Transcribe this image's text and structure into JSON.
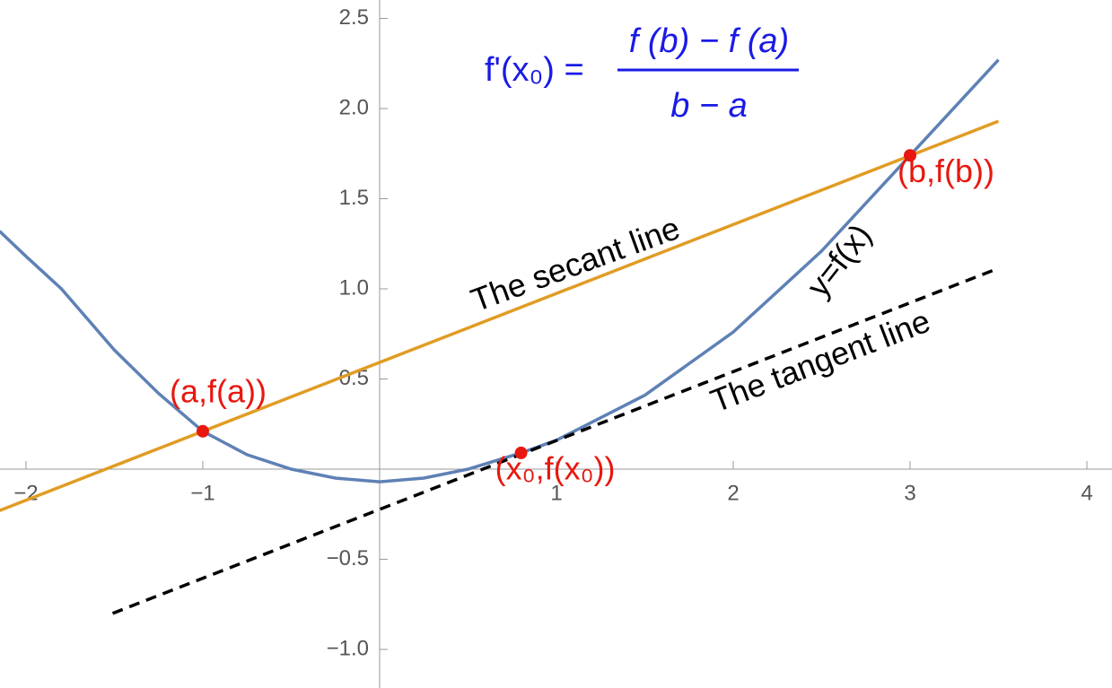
{
  "chart_data": {
    "type": "line",
    "formula": {
      "lhs": "f'(x₀) =",
      "numerator": "f (b) − f (a)",
      "denominator": "b − a"
    },
    "xlim": [
      -2.147,
      4.142
    ],
    "ylim": [
      -1.214,
      2.602
    ],
    "xticks": [
      {
        "value": -2,
        "label": "−2"
      },
      {
        "value": -1,
        "label": "−1"
      },
      1,
      2,
      3,
      4
    ],
    "yticks": [
      {
        "value": -1,
        "label": "−1.0"
      },
      {
        "value": -0.5,
        "label": "−0.5"
      },
      0.5,
      {
        "value": 1,
        "label": "1.0"
      },
      1.5,
      {
        "value": 2,
        "label": "2.0"
      },
      2.5
    ],
    "series": [
      {
        "color": "#5e81b5",
        "dashed": false,
        "x": [
          -2.15,
          -2,
          -1.8,
          -1.5,
          -1.25,
          -1,
          -0.75,
          -0.5,
          -0.25,
          0,
          0.25,
          0.5,
          0.8,
          1,
          1.5,
          2,
          2.5,
          3,
          3.5
        ],
        "values": [
          1.32,
          1.18,
          1.0,
          0.66,
          0.42,
          0.21,
          0.08,
          0.0,
          -0.05,
          -0.07,
          -0.05,
          0.0,
          0.09,
          0.16,
          0.41,
          0.76,
          1.21,
          1.74,
          2.27
        ]
      },
      {
        "color": "#e19c24",
        "dashed": false,
        "x": [
          -2.15,
          3.5
        ],
        "values": [
          -0.23,
          1.93
        ]
      },
      {
        "color": "#000000",
        "dashed": true,
        "x": [
          -1.51,
          3.49
        ],
        "values": [
          -0.8,
          1.11
        ]
      }
    ],
    "points": {
      "color": "#e8170f",
      "x": [
        -1,
        0.8,
        3
      ],
      "values": [
        0.21,
        0.09,
        1.74
      ],
      "labels": [
        "(a,f(a))",
        "(x₀,f(x₀))",
        "(b,f(b))"
      ]
    },
    "annotations": [
      "The secant line",
      "The tangent line",
      "y=f(x)"
    ]
  }
}
